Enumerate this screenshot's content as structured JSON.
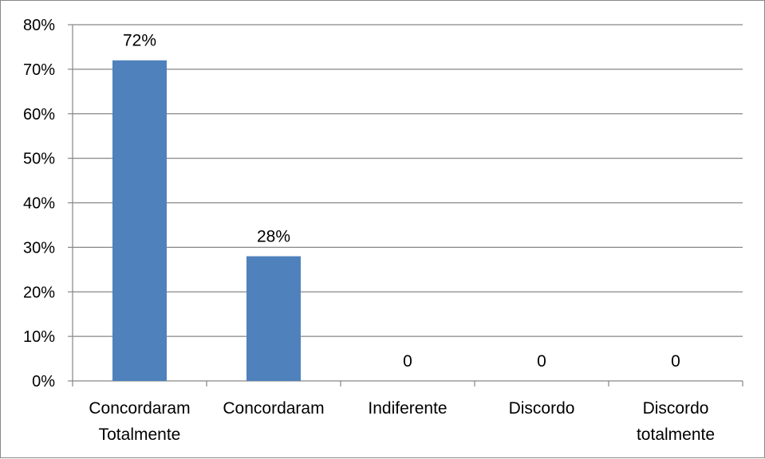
{
  "chart_data": {
    "type": "bar",
    "categories": [
      [
        "Concordaram",
        "Totalmente"
      ],
      [
        "Concordaram"
      ],
      [
        "Indiferente"
      ],
      [
        "Discordo"
      ],
      [
        "Discordo",
        "totalmente"
      ]
    ],
    "values": [
      72,
      28,
      0,
      0,
      0
    ],
    "data_labels": [
      "72%",
      "28%",
      "0",
      "0",
      "0"
    ],
    "yticks": [
      "0%",
      "10%",
      "20%",
      "30%",
      "40%",
      "50%",
      "60%",
      "70%",
      "80%"
    ],
    "ylim": [
      0,
      80
    ],
    "grid": true,
    "legend": "none",
    "bar_color": "#4F81BD",
    "grid_color": "#868686"
  }
}
